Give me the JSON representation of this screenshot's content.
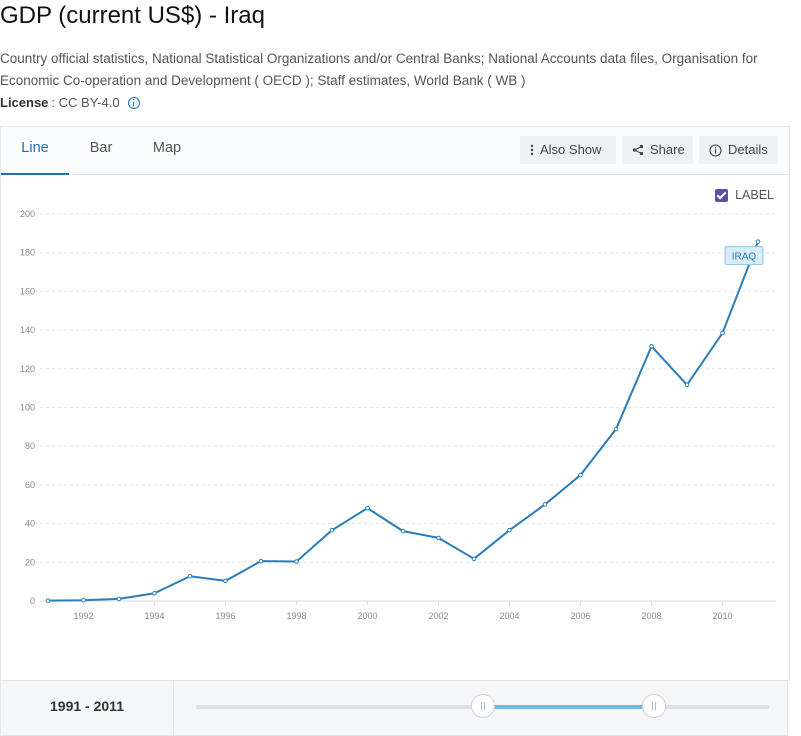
{
  "header": {
    "title": "GDP (current US$) - Iraq",
    "source": "Country official statistics, National Statistical Organizations and/or Central Banks; National Accounts data files, Organisation for Economic Co-operation and Development ( OECD ); Staff estimates, World Bank ( WB )",
    "license_label": "License",
    "license_value": ": CC BY-4.0"
  },
  "tabs": [
    {
      "label": "Line",
      "active": true
    },
    {
      "label": "Bar",
      "active": false
    },
    {
      "label": "Map",
      "active": false
    }
  ],
  "toolbar": {
    "also_show": "Also Show",
    "share": "Share",
    "details": "Details"
  },
  "label_toggle": {
    "label": "LABEL",
    "checked": true
  },
  "colors": {
    "line": "#2a7db8",
    "accent": "#1e6fb4",
    "checkbox": "#5b4fa6",
    "slider_fill": "#6cb9e8"
  },
  "chart_data": {
    "type": "line",
    "x": [
      1991,
      1992,
      1993,
      1994,
      1995,
      1996,
      1997,
      1998,
      1999,
      2000,
      2001,
      2002,
      2003,
      2004,
      2005,
      2006,
      2007,
      2008,
      2009,
      2010,
      2011
    ],
    "series": [
      {
        "name": "IRAQ",
        "values": [
          0.2,
          0.4,
          1.1,
          4.0,
          12.8,
          10.4,
          20.6,
          20.4,
          36.6,
          48.0,
          36.1,
          32.6,
          21.8,
          36.6,
          49.9,
          65.1,
          88.8,
          131.6,
          111.7,
          138.5,
          185.7
        ]
      }
    ],
    "ylim": [
      0,
      200
    ],
    "yticks": [
      "0",
      "20",
      "40",
      "60",
      "80",
      "100",
      "120",
      "140",
      "160",
      "180",
      "200"
    ],
    "xticks": [
      "1992",
      "1994",
      "1996",
      "1998",
      "2000",
      "2002",
      "2004",
      "2006",
      "2008",
      "2010"
    ],
    "grid": true
  },
  "range": {
    "text": "1991 - 2011",
    "start_fraction": 0.5,
    "end_fraction": 0.8
  }
}
